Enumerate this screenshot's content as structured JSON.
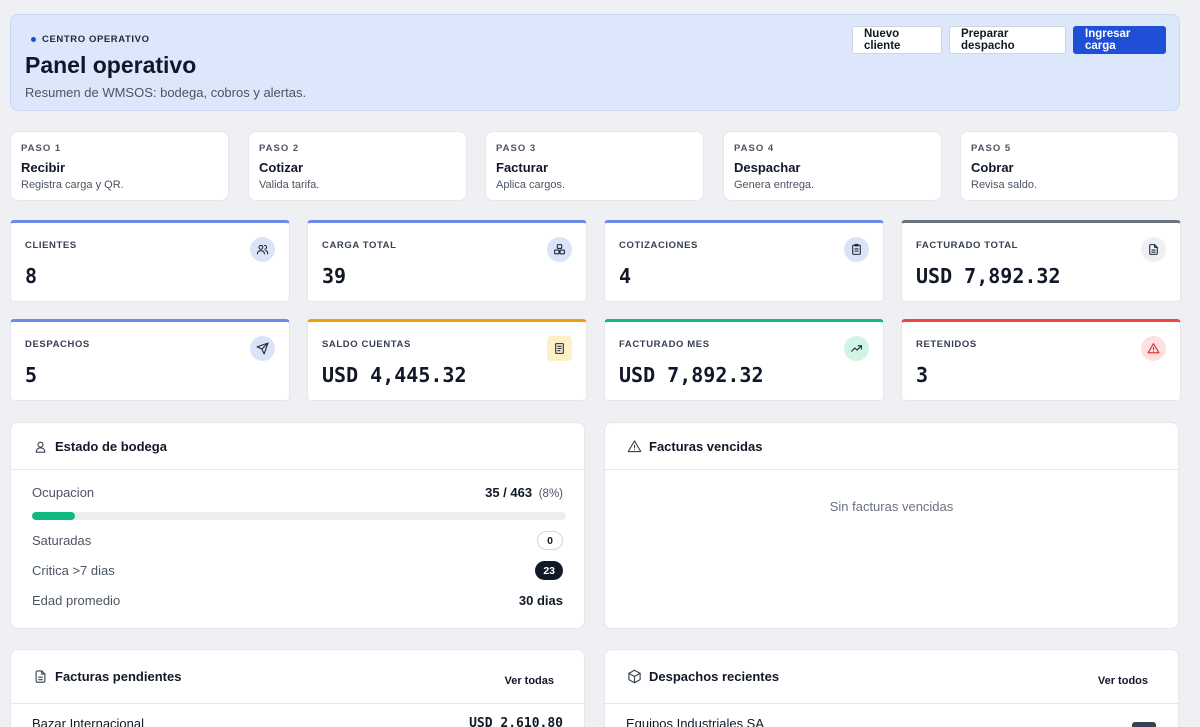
{
  "header": {
    "eyebrow": "CENTRO OPERATIVO",
    "title": "Panel operativo",
    "subtitle": "Resumen de WMSOS: bodega, cobros y alertas.",
    "actions": {
      "new_client": "Nuevo cliente",
      "prepare_dispatch": "Preparar despacho",
      "ingest_cargo": "Ingresar carga"
    },
    "accent_color": "#1e4fd6"
  },
  "steps": [
    {
      "num": "PASO 1",
      "title": "Recibir",
      "desc": "Registra carga y QR."
    },
    {
      "num": "PASO 2",
      "title": "Cotizar",
      "desc": "Valida tarifa."
    },
    {
      "num": "PASO 3",
      "title": "Facturar",
      "desc": "Aplica cargos."
    },
    {
      "num": "PASO 4",
      "title": "Despachar",
      "desc": "Genera entrega."
    },
    {
      "num": "PASO 5",
      "title": "Cobrar",
      "desc": "Revisa saldo."
    }
  ],
  "stats": [
    {
      "label": "CLIENTES",
      "value": "8",
      "icon": "users-icon",
      "accent": "#6b8be6",
      "icon_bg": "#dbe4f7"
    },
    {
      "label": "CARGA TOTAL",
      "value": "39",
      "icon": "boxes-icon",
      "accent": "#6b8be6",
      "icon_bg": "#dbe4f7"
    },
    {
      "label": "COTIZACIONES",
      "value": "4",
      "icon": "clipboard-icon",
      "accent": "#6b8be6",
      "icon_bg": "#dbe4f7"
    },
    {
      "label": "FACTURADO TOTAL",
      "value": "USD 7,892.32",
      "icon": "file-icon",
      "accent": "#6b7280",
      "icon_bg": "#eef0f3"
    },
    {
      "label": "DESPACHOS",
      "value": "5",
      "icon": "send-icon",
      "accent": "#6b8be6",
      "icon_bg": "#dbe4f7"
    },
    {
      "label": "SALDO CUENTAS",
      "value": "USD 4,445.32",
      "icon": "receipt-icon",
      "accent": "#f59e0b",
      "icon_bg": "#fdf0c7"
    },
    {
      "label": "FACTURADO MES",
      "value": "USD 7,892.32",
      "icon": "trending-up-icon",
      "accent": "#10b981",
      "icon_bg": "#d1f5e4"
    },
    {
      "label": "RETENIDOS",
      "value": "3",
      "icon": "alert-icon",
      "accent": "#ef4444",
      "icon_bg": "#fde0e0"
    }
  ],
  "warehouse": {
    "title": "Estado de bodega",
    "occupancy_label": "Ocupacion",
    "occupancy_value": "35 / 463",
    "occupancy_pct": "(8%)",
    "occupancy_fraction": 0.08,
    "saturated_label": "Saturadas",
    "saturated_value": "0",
    "critical_label": "Critica >7 dias",
    "critical_value": "23",
    "avg_age_label": "Edad promedio",
    "avg_age_value": "30 dias"
  },
  "overdue": {
    "title": "Facturas vencidas",
    "empty_text": "Sin facturas vencidas"
  },
  "pending_invoices": {
    "title": "Facturas pendientes",
    "see_all": "Ver todas",
    "rows": [
      {
        "name": "Bazar Internacional",
        "amount": "USD 2,610.80"
      }
    ]
  },
  "recent_dispatches": {
    "title": "Despachos recientes",
    "see_all": "Ver todos",
    "rows": [
      {
        "name": "Equipos Industriales SA"
      }
    ]
  }
}
